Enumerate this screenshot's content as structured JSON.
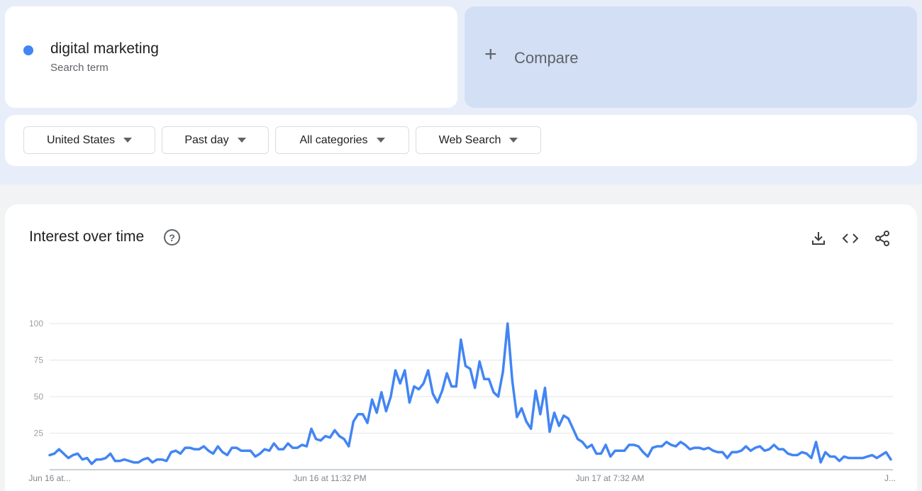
{
  "search_term": {
    "name": "digital marketing",
    "subtitle": "Search term",
    "color": "#4285f4"
  },
  "compare": {
    "label": "Compare"
  },
  "filters": {
    "region": "United States",
    "period": "Past day",
    "category": "All categories",
    "property": "Web Search"
  },
  "panel": {
    "title": "Interest over time",
    "help_icon": "help-circle-icon",
    "actions": [
      "download-icon",
      "embed-code-icon",
      "share-icon"
    ]
  },
  "chart_data": {
    "type": "line",
    "ylim": [
      0,
      100
    ],
    "yticks": [
      "100",
      "75",
      "50",
      "25"
    ],
    "grid": true,
    "x_tick_labels": [
      "Jun 16 at...",
      "Jun 16 at 11:32 PM",
      "Jun 17 at 7:32 AM",
      "J..."
    ],
    "series": [
      {
        "color": "#4285f4",
        "values": [
          10,
          11,
          14,
          11,
          8,
          10,
          11,
          7,
          8,
          4,
          7,
          7,
          8,
          11,
          6,
          6,
          7,
          6,
          5,
          5,
          7,
          8,
          5,
          7,
          7,
          6,
          12,
          13,
          11,
          15,
          15,
          14,
          14,
          16,
          13,
          11,
          16,
          12,
          10,
          15,
          15,
          13,
          13,
          13,
          9,
          11,
          14,
          13,
          18,
          14,
          14,
          18,
          15,
          15,
          17,
          16,
          28,
          21,
          20,
          23,
          22,
          27,
          23,
          21,
          16,
          33,
          38,
          38,
          32,
          48,
          39,
          53,
          40,
          50,
          68,
          59,
          68,
          46,
          57,
          55,
          59,
          68,
          52,
          46,
          54,
          66,
          57,
          57,
          89,
          71,
          69,
          56,
          74,
          62,
          62,
          53,
          50,
          67,
          100,
          61,
          36,
          42,
          33,
          28,
          54,
          38,
          56,
          26,
          39,
          30,
          37,
          35,
          28,
          21,
          19,
          15,
          17,
          11,
          11,
          17,
          9,
          13,
          13,
          13,
          17,
          17,
          16,
          12,
          9,
          15,
          16,
          16,
          19,
          17,
          16,
          19,
          17,
          14,
          15,
          15,
          14,
          15,
          13,
          12,
          12,
          8,
          12,
          12,
          13,
          16,
          13,
          15,
          16,
          13,
          14,
          17,
          14,
          14,
          11,
          10,
          10,
          12,
          11,
          8,
          19,
          5,
          12,
          9,
          9,
          6,
          9,
          8,
          8,
          8,
          8,
          9,
          10,
          8,
          10,
          12,
          7
        ]
      }
    ]
  }
}
